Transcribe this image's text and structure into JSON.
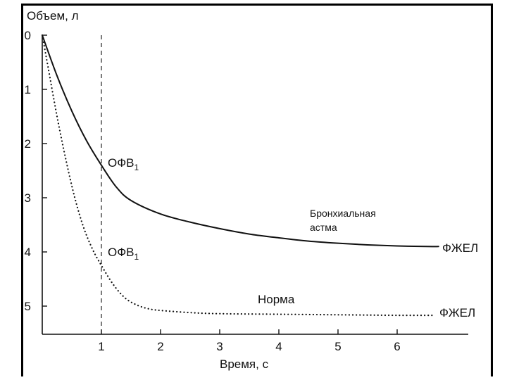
{
  "chart_data": {
    "type": "line",
    "title": "",
    "xlabel": "Время, с",
    "ylabel": "Объем, л",
    "xlim": [
      0,
      7.1
    ],
    "ylim": [
      0,
      5.5
    ],
    "y_inverted": true,
    "x_ticks": [
      1,
      2,
      3,
      4,
      5,
      6
    ],
    "y_ticks": [
      0,
      1,
      2,
      3,
      4,
      5
    ],
    "grid": false,
    "reference_line": {
      "x": 1,
      "style": "dashed"
    },
    "series": [
      {
        "name": "Бронхиальная астма",
        "style": "solid",
        "color": "#111111",
        "x": [
          0,
          0.25,
          0.5,
          0.75,
          1.0,
          1.25,
          1.5,
          2.0,
          2.5,
          3.0,
          3.5,
          4.0,
          4.5,
          5.0,
          5.5,
          6.0,
          6.5,
          6.7
        ],
        "y": [
          0,
          0.75,
          1.4,
          1.95,
          2.4,
          2.8,
          3.05,
          3.3,
          3.45,
          3.57,
          3.67,
          3.74,
          3.8,
          3.84,
          3.87,
          3.89,
          3.9,
          3.9
        ]
      },
      {
        "name": "Норма",
        "style": "dotted",
        "color": "#111111",
        "x": [
          0,
          0.1,
          0.25,
          0.4,
          0.55,
          0.7,
          0.85,
          1.0,
          1.2,
          1.4,
          1.6,
          1.8,
          2.0,
          2.5,
          3.0,
          4.0,
          5.0,
          6.0,
          6.6
        ],
        "y": [
          0,
          0.6,
          1.5,
          2.3,
          3.0,
          3.55,
          3.95,
          4.25,
          4.6,
          4.85,
          4.98,
          5.05,
          5.08,
          5.12,
          5.14,
          5.15,
          5.16,
          5.17,
          5.17
        ]
      }
    ],
    "annotations": {
      "fev1_asthma": "ОФВ",
      "fev1_asthma_sub": "1",
      "fev1_norm": "ОФВ",
      "fev1_norm_sub": "1",
      "asthma_label_line1": "Бронхиальная",
      "asthma_label_line2": "астма",
      "norm_label": "Норма",
      "fvc_asthma": "ФЖЕЛ",
      "fvc_norm": "ФЖЕЛ"
    }
  }
}
